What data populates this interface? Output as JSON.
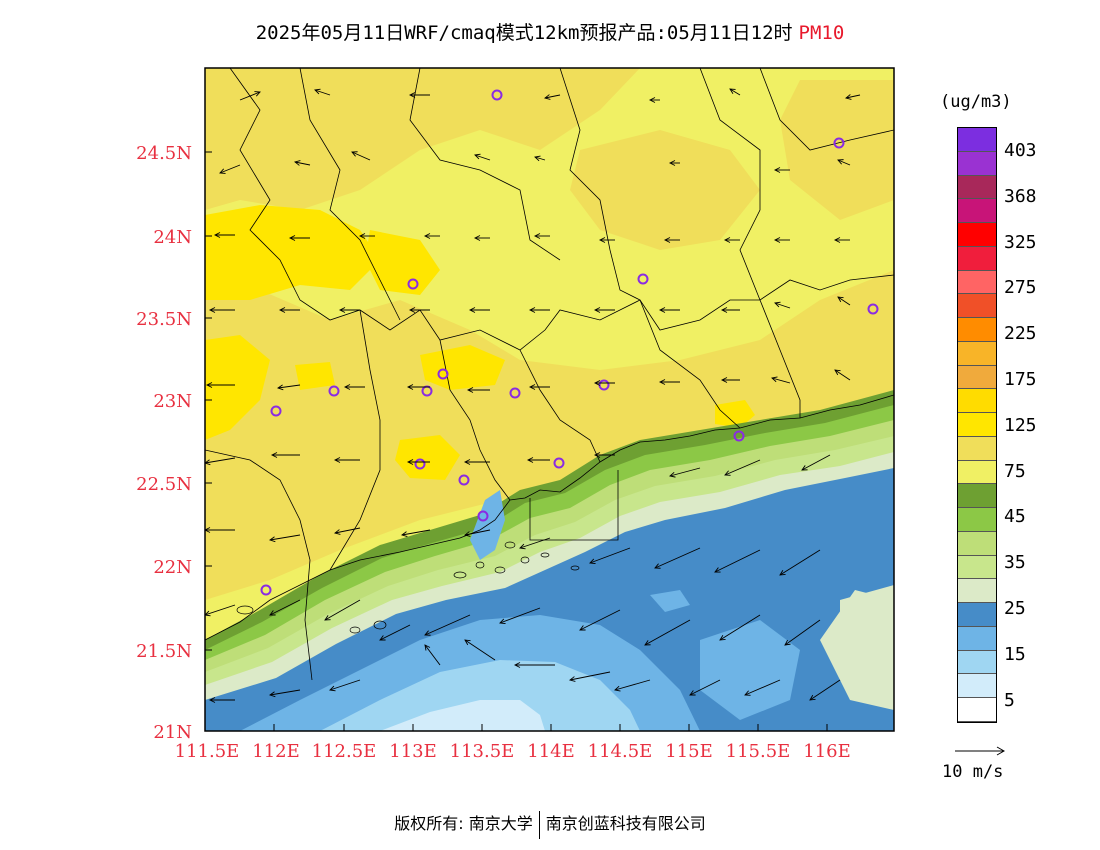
{
  "title": {
    "text": "2025年05月11日WRF/cmaq模式12km预报产品:05月11日12时",
    "pollutant": "PM10"
  },
  "map": {
    "lat_labels": [
      "24.5N",
      "24N",
      "23.5N",
      "23N",
      "22.5N",
      "22N",
      "21.5N",
      "21N"
    ],
    "lon_labels": [
      "111.5E",
      "112E",
      "112.5E",
      "113E",
      "113.5E",
      "114E",
      "114.5E",
      "115E",
      "115.5E",
      "116E"
    ],
    "label_color": "#e83040"
  },
  "colorbar": {
    "units": "(ug/m3)",
    "labels": [
      "403",
      "368",
      "325",
      "275",
      "225",
      "175",
      "125",
      "75",
      "45",
      "35",
      "25",
      "15",
      "5"
    ],
    "colors": [
      "#7c2ee0",
      "#9a32d2",
      "#a8285a",
      "#c81478",
      "#ff0000",
      "#f01e3c",
      "#ff6464",
      "#f05028",
      "#ff8c00",
      "#f8b428",
      "#f0aa3c",
      "#ffdc00",
      "#ffe600",
      "#f0de5a",
      "#f0f064",
      "#6ea032",
      "#8cc846",
      "#bede78",
      "#c8e68c",
      "#dceac8",
      "#468cc8",
      "#6eb4e6",
      "#9fd6f2",
      "#d2ecfa",
      "#ffffff"
    ]
  },
  "wind_reference": {
    "label": "10 m/s"
  },
  "footer": {
    "left": "版权所有: 南京大学",
    "right": "南京创蓝科技有限公司"
  }
}
